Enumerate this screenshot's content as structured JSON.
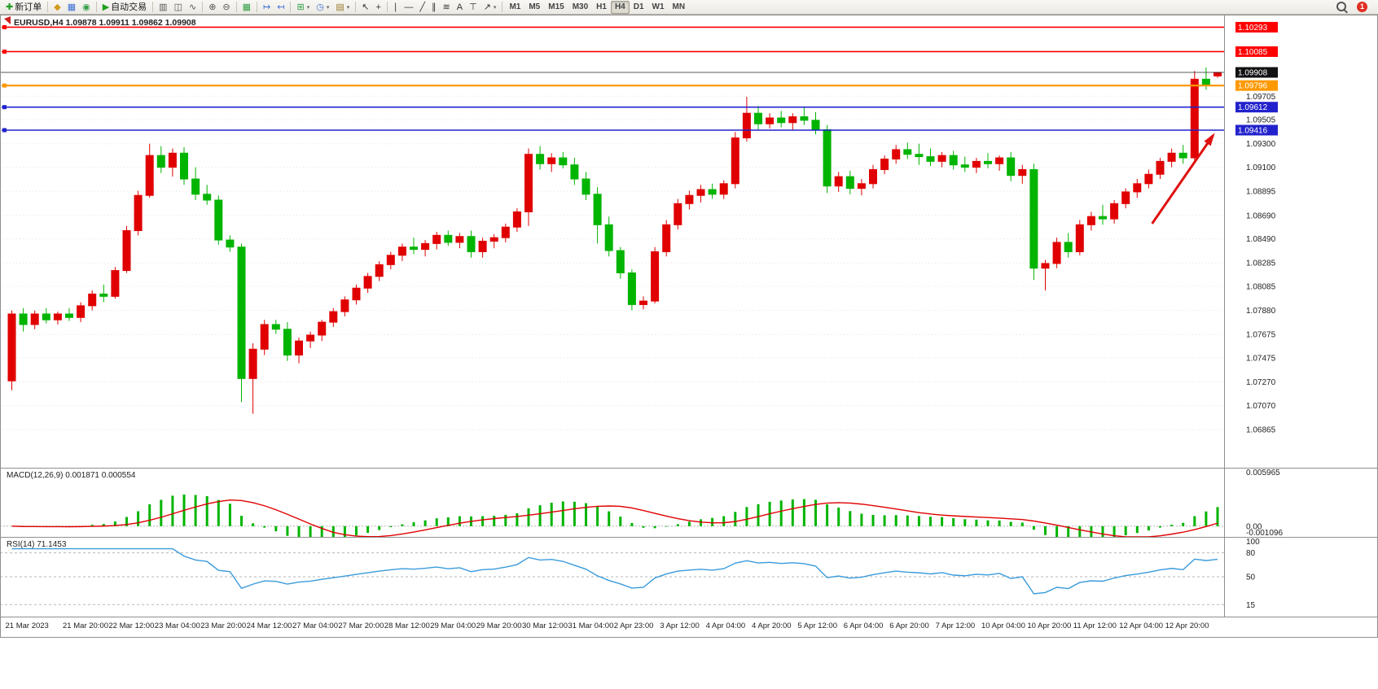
{
  "toolbar": {
    "timeframes": [
      "M1",
      "M5",
      "M15",
      "M30",
      "H1",
      "H4",
      "D1",
      "W1",
      "MN"
    ],
    "active_timeframe": "H4",
    "notification_count": "1",
    "items": [
      {
        "type": "button",
        "name": "new-order-button",
        "icon_name": "new-order-icon",
        "glyph": "✚",
        "color": "#1f9d1f",
        "label": "新订单"
      },
      {
        "type": "sep"
      },
      {
        "type": "button",
        "name": "market-watch-icon",
        "icon_name": "market-watch-icon",
        "glyph": "◆",
        "color": "#d29a1c"
      },
      {
        "type": "button",
        "name": "data-window-icon",
        "icon_name": "data-window-icon",
        "glyph": "▦",
        "color": "#3b6fd4"
      },
      {
        "type": "button",
        "name": "navigator-icon",
        "icon_name": "navigator-icon",
        "glyph": "◉",
        "color": "#2f9e44"
      },
      {
        "type": "sep"
      },
      {
        "type": "button",
        "name": "autotrade-button",
        "icon_name": "autotrade-play-icon",
        "glyph": "▶",
        "color": "#1f9d1f",
        "label": "自动交易"
      },
      {
        "type": "sep"
      },
      {
        "type": "button",
        "name": "bar-chart-icon",
        "icon_name": "bar-chart-icon",
        "glyph": "▥",
        "color": "#555555"
      },
      {
        "type": "button",
        "name": "candlestick-chart-icon",
        "icon_name": "candlestick-chart-icon",
        "glyph": "◫",
        "color": "#555555"
      },
      {
        "type": "button",
        "name": "line-chart-icon",
        "icon_name": "line-chart-icon",
        "glyph": "∿",
        "color": "#555555"
      },
      {
        "type": "sep"
      },
      {
        "type": "button",
        "name": "zoom-in-icon",
        "icon_name": "zoom-in-icon",
        "glyph": "⊕",
        "color": "#555555"
      },
      {
        "type": "button",
        "name": "zoom-out-icon",
        "icon_name": "zoom-out-icon",
        "glyph": "⊖",
        "color": "#555555"
      },
      {
        "type": "sep"
      },
      {
        "type": "button",
        "name": "tile-windows-icon",
        "icon_name": "tile-windows-icon",
        "glyph": "▦",
        "color": "#2f9e44"
      },
      {
        "type": "sep"
      },
      {
        "type": "button",
        "name": "auto-scroll-icon",
        "icon_name": "auto-scroll-icon",
        "glyph": "↦",
        "color": "#3b6fd4"
      },
      {
        "type": "button",
        "name": "chart-shift-icon",
        "icon_name": "chart-shift-icon",
        "glyph": "↤",
        "color": "#3b6fd4"
      },
      {
        "type": "sep"
      },
      {
        "type": "button",
        "name": "indicators-button",
        "icon_name": "indicators-icon",
        "glyph": "⊞",
        "color": "#2f9e44",
        "dropdown": true
      },
      {
        "type": "button",
        "name": "periods-button",
        "icon_name": "clock-icon",
        "glyph": "◷",
        "color": "#3b6fd4",
        "dropdown": true
      },
      {
        "type": "button",
        "name": "templates-button",
        "icon_name": "templates-icon",
        "glyph": "▤",
        "color": "#9a7b2f",
        "dropdown": true
      },
      {
        "type": "sep"
      },
      {
        "type": "button",
        "name": "cursor-icon",
        "icon_name": "cursor-icon",
        "glyph": "↖",
        "color": "#333333"
      },
      {
        "type": "button",
        "name": "crosshair-icon",
        "icon_name": "crosshair-icon",
        "glyph": "+",
        "color": "#333333"
      },
      {
        "type": "sep"
      },
      {
        "type": "button",
        "name": "vertical-line-icon",
        "icon_name": "vertical-line-icon",
        "glyph": "∣",
        "color": "#333333"
      },
      {
        "type": "button",
        "name": "horizontal-line-icon",
        "icon_name": "horizontal-line-icon",
        "glyph": "―",
        "color": "#333333"
      },
      {
        "type": "button",
        "name": "trendline-icon",
        "icon_name": "trendline-icon",
        "glyph": "╱",
        "color": "#333333"
      },
      {
        "type": "button",
        "name": "channel-icon",
        "icon_name": "channel-icon",
        "glyph": "∥",
        "color": "#333333"
      },
      {
        "type": "button",
        "name": "fibonacci-icon",
        "icon_name": "fibonacci-icon",
        "glyph": "≋",
        "color": "#333333"
      },
      {
        "type": "button",
        "name": "text-icon",
        "icon_name": "text-icon",
        "glyph": "A",
        "color": "#333333"
      },
      {
        "type": "button",
        "name": "text-label-icon",
        "icon_name": "text-label-icon",
        "glyph": "⊤",
        "color": "#333333"
      },
      {
        "type": "button",
        "name": "arrows-button",
        "icon_name": "arrow-objects-icon",
        "glyph": "↗",
        "color": "#333333",
        "dropdown": true
      },
      {
        "type": "sep"
      },
      {
        "type": "timeframes"
      },
      {
        "type": "spacer"
      },
      {
        "type": "search"
      },
      {
        "type": "badge",
        "name": "notification-badge"
      }
    ]
  },
  "chart_data": [
    {
      "type": "candlestick",
      "symbol": "EURUSD",
      "timeframe": "H4",
      "title_line": "EURUSD,H4  1.09878 1.09911 1.09862 1.09908",
      "open": 1.09878,
      "high": 1.09911,
      "low": 1.09862,
      "close": 1.09908,
      "up_color": "#e00000",
      "down_color": "#00b400",
      "ylim": [
        1.0654,
        1.104
      ],
      "grid": true,
      "price_ticks": [
        1.09705,
        1.09505,
        1.093,
        1.091,
        1.08895,
        1.0869,
        1.0849,
        1.08285,
        1.08085,
        1.0788,
        1.07675,
        1.07475,
        1.0727,
        1.0707,
        1.06865
      ],
      "hlines": [
        {
          "price": 1.10293,
          "color": "#ff0000",
          "label": "1.10293",
          "width": 1.6
        },
        {
          "price": 1.10085,
          "color": "#ff0000",
          "label": "1.10085",
          "width": 1.6
        },
        {
          "price": 1.09796,
          "color": "#ff9900",
          "label": "1.09796",
          "width": 2.2
        },
        {
          "price": 1.09612,
          "color": "#2222cc",
          "label": "1.09612",
          "width": 1.6
        },
        {
          "price": 1.09416,
          "color": "#2222cc",
          "label": "1.09416",
          "width": 1.6
        }
      ],
      "current_price": {
        "value": 1.09908,
        "label": "1.09908",
        "badge_color": "#111111"
      },
      "x_tick_labels": [
        "21 Mar 2023",
        "21 Mar 20:00",
        "22 Mar 12:00",
        "23 Mar 04:00",
        "23 Mar 20:00",
        "24 Mar 12:00",
        "27 Mar 04:00",
        "27 Mar 20:00",
        "28 Mar 12:00",
        "29 Mar 04:00",
        "29 Mar 20:00",
        "30 Mar 12:00",
        "31 Mar 04:00",
        "2 Apr 23:00",
        "3 Apr 12:00",
        "4 Apr 04:00",
        "4 Apr 20:00",
        "5 Apr 12:00",
        "6 Apr 04:00",
        "6 Apr 20:00",
        "7 Apr 12:00",
        "10 Apr 04:00",
        "10 Apr 20:00",
        "11 Apr 12:00",
        "12 Apr 04:00",
        "12 Apr 20:00"
      ],
      "x_tick_indices": [
        0,
        5,
        9,
        13,
        17,
        21,
        25,
        29,
        33,
        37,
        41,
        45,
        49,
        53,
        57,
        61,
        65,
        69,
        73,
        77,
        81,
        85,
        89,
        93,
        97,
        101
      ],
      "annotation": {
        "type": "arrow",
        "color": "#e01010",
        "from": {
          "candle": 99.3,
          "price": 1.0862
        },
        "to": {
          "candle": 104.6,
          "price": 1.0937
        }
      },
      "ohlc_header": [
        "open",
        "high",
        "low",
        "close"
      ],
      "candles": [
        [
          1.0728,
          1.0788,
          1.072,
          1.0785
        ],
        [
          1.0785,
          1.079,
          1.077,
          1.0776
        ],
        [
          1.0776,
          1.0788,
          1.0772,
          1.0785
        ],
        [
          1.0785,
          1.079,
          1.0777,
          1.078
        ],
        [
          1.078,
          1.0787,
          1.0776,
          1.0785
        ],
        [
          1.0785,
          1.079,
          1.0779,
          1.0782
        ],
        [
          1.0782,
          1.0795,
          1.0778,
          1.0792
        ],
        [
          1.0792,
          1.0805,
          1.0788,
          1.0802
        ],
        [
          1.0802,
          1.081,
          1.0795,
          1.08
        ],
        [
          1.08,
          1.0825,
          1.0798,
          1.0822
        ],
        [
          1.0822,
          1.086,
          1.082,
          1.0856
        ],
        [
          1.0856,
          1.089,
          1.0852,
          1.0886
        ],
        [
          1.0886,
          1.093,
          1.0884,
          1.092
        ],
        [
          1.092,
          1.0928,
          1.0905,
          1.091
        ],
        [
          1.091,
          1.0926,
          1.0902,
          1.0922
        ],
        [
          1.0922,
          1.0927,
          1.0895,
          1.09
        ],
        [
          1.09,
          1.091,
          1.0882,
          1.0887
        ],
        [
          1.0887,
          1.0895,
          1.0878,
          1.0882
        ],
        [
          1.0882,
          1.0886,
          1.0844,
          1.0848
        ],
        [
          1.0848,
          1.0852,
          1.0838,
          1.0842
        ],
        [
          1.0842,
          1.0845,
          1.071,
          1.073
        ],
        [
          1.073,
          1.076,
          1.07,
          1.0755
        ],
        [
          1.0755,
          1.078,
          1.075,
          1.0776
        ],
        [
          1.0776,
          1.078,
          1.0768,
          1.0772
        ],
        [
          1.0772,
          1.0778,
          1.0745,
          1.075
        ],
        [
          1.075,
          1.0765,
          1.0743,
          1.0762
        ],
        [
          1.0762,
          1.077,
          1.0756,
          1.0767
        ],
        [
          1.0767,
          1.078,
          1.0762,
          1.0778
        ],
        [
          1.0778,
          1.079,
          1.0774,
          1.0787
        ],
        [
          1.0787,
          1.08,
          1.0783,
          1.0797
        ],
        [
          1.0797,
          1.081,
          1.0793,
          1.0807
        ],
        [
          1.0807,
          1.082,
          1.0803,
          1.0817
        ],
        [
          1.0817,
          1.083,
          1.0813,
          1.0827
        ],
        [
          1.0827,
          1.0838,
          1.0823,
          1.0835
        ],
        [
          1.0835,
          1.0845,
          1.083,
          1.0842
        ],
        [
          1.0842,
          1.085,
          1.0836,
          1.084
        ],
        [
          1.084,
          1.0848,
          1.0834,
          1.0845
        ],
        [
          1.0845,
          1.0855,
          1.084,
          1.0852
        ],
        [
          1.0852,
          1.0856,
          1.0843,
          1.0846
        ],
        [
          1.0846,
          1.0854,
          1.0841,
          1.0851
        ],
        [
          1.0851,
          1.0856,
          1.0833,
          1.0838
        ],
        [
          1.0838,
          1.085,
          1.0833,
          1.0847
        ],
        [
          1.0847,
          1.0853,
          1.0841,
          1.085
        ],
        [
          1.085,
          1.0862,
          1.0846,
          1.0859
        ],
        [
          1.0859,
          1.0875,
          1.0855,
          1.0872
        ],
        [
          1.0872,
          1.0926,
          1.086,
          1.0921
        ],
        [
          1.0921,
          1.0928,
          1.0908,
          1.0913
        ],
        [
          1.0913,
          1.0922,
          1.0906,
          1.0918
        ],
        [
          1.0918,
          1.0923,
          1.0909,
          1.0912
        ],
        [
          1.0912,
          1.0918,
          1.0895,
          1.09
        ],
        [
          1.09,
          1.0906,
          1.0882,
          1.0887
        ],
        [
          1.0887,
          1.0893,
          1.0845,
          1.0861
        ],
        [
          1.0861,
          1.0868,
          1.0834,
          1.0839
        ],
        [
          1.0839,
          1.0842,
          1.0815,
          1.082
        ],
        [
          1.082,
          1.0823,
          1.0788,
          1.0793
        ],
        [
          1.0793,
          1.08,
          1.0789,
          1.0796
        ],
        [
          1.0796,
          1.0842,
          1.0794,
          1.0838
        ],
        [
          1.0838,
          1.0865,
          1.0834,
          1.0861
        ],
        [
          1.0861,
          1.0883,
          1.0857,
          1.0879
        ],
        [
          1.0879,
          1.089,
          1.0874,
          1.0886
        ],
        [
          1.0886,
          1.0895,
          1.088,
          1.0891
        ],
        [
          1.0891,
          1.0896,
          1.0883,
          1.0887
        ],
        [
          1.0887,
          1.0899,
          1.0883,
          1.0896
        ],
        [
          1.0896,
          1.094,
          1.0892,
          1.0935
        ],
        [
          1.0935,
          1.097,
          1.0932,
          1.0956
        ],
        [
          1.0956,
          1.0962,
          1.0942,
          1.0947
        ],
        [
          1.0947,
          1.0956,
          1.0943,
          1.0952
        ],
        [
          1.0952,
          1.0958,
          1.0944,
          1.0948
        ],
        [
          1.0948,
          1.0956,
          1.0942,
          1.0953
        ],
        [
          1.0953,
          1.0961,
          1.0946,
          1.095
        ],
        [
          1.095,
          1.0957,
          1.0938,
          1.0942
        ],
        [
          1.0942,
          1.0946,
          1.0888,
          1.0894
        ],
        [
          1.0894,
          1.0906,
          1.0889,
          1.0902
        ],
        [
          1.0902,
          1.0907,
          1.0887,
          1.0892
        ],
        [
          1.0892,
          1.09,
          1.0886,
          1.0896
        ],
        [
          1.0896,
          1.0912,
          1.0892,
          1.0908
        ],
        [
          1.0908,
          1.092,
          1.0904,
          1.0917
        ],
        [
          1.0917,
          1.0929,
          1.0913,
          1.0925
        ],
        [
          1.0925,
          1.0931,
          1.0917,
          1.0921
        ],
        [
          1.0921,
          1.093,
          1.0912,
          1.0919
        ],
        [
          1.0919,
          1.0926,
          1.0911,
          1.0915
        ],
        [
          1.0915,
          1.0923,
          1.091,
          1.092
        ],
        [
          1.092,
          1.0924,
          1.0908,
          1.0912
        ],
        [
          1.0912,
          1.0919,
          1.0906,
          1.091
        ],
        [
          1.091,
          1.0918,
          1.0905,
          1.0915
        ],
        [
          1.0915,
          1.0922,
          1.0909,
          1.0913
        ],
        [
          1.0913,
          1.092,
          1.0907,
          1.0918
        ],
        [
          1.0918,
          1.0923,
          1.0898,
          1.0903
        ],
        [
          1.0903,
          1.0912,
          1.0896,
          1.0908
        ],
        [
          1.0908,
          1.0913,
          1.0814,
          1.0824
        ],
        [
          1.0824,
          1.0831,
          1.0805,
          1.0828
        ],
        [
          1.0828,
          1.085,
          1.0824,
          1.0846
        ],
        [
          1.0846,
          1.0854,
          1.0833,
          1.0838
        ],
        [
          1.0838,
          1.0865,
          1.0835,
          1.0861
        ],
        [
          1.0861,
          1.0872,
          1.0856,
          1.0868
        ],
        [
          1.0868,
          1.0878,
          1.0861,
          1.0866
        ],
        [
          1.0866,
          1.0882,
          1.0862,
          1.0879
        ],
        [
          1.0879,
          1.0892,
          1.0875,
          1.0889
        ],
        [
          1.0889,
          1.09,
          1.0884,
          1.0896
        ],
        [
          1.0896,
          1.0908,
          1.0892,
          1.0904
        ],
        [
          1.0904,
          1.0918,
          1.09,
          1.0915
        ],
        [
          1.0915,
          1.0926,
          1.091,
          1.0922
        ],
        [
          1.0922,
          1.0929,
          1.0913,
          1.0918
        ],
        [
          1.0918,
          1.0992,
          1.0915,
          1.0985
        ],
        [
          1.0985,
          1.0995,
          1.0976,
          1.098
        ],
        [
          1.09878,
          1.09911,
          1.09862,
          1.09908
        ]
      ]
    },
    {
      "type": "macd",
      "label": "MACD(12,26,9) 0.001871 0.000554",
      "params": [
        12,
        26,
        9
      ],
      "current_macd": 0.001871,
      "current_signal": 0.000554,
      "histogram_color": "#00b400",
      "signal_color": "#e00000",
      "ylim": [
        -0.001096,
        0.005965
      ],
      "yticks": [
        {
          "v": 0.005965,
          "label": "0.005965"
        },
        {
          "v": 0,
          "label": "0.00"
        },
        {
          "v": -0.001096,
          "label": "-0.001096"
        }
      ]
    },
    {
      "type": "rsi",
      "label": "RSI(14) 71.1453",
      "period": 14,
      "current": 71.1453,
      "line_color": "#3a9bdc",
      "ylim": [
        0,
        100
      ],
      "levels": [
        80,
        50,
        15
      ],
      "yticks": [
        {
          "v": 100,
          "label": "100"
        },
        {
          "v": 80,
          "label": "80"
        },
        {
          "v": 50,
          "label": "50"
        },
        {
          "v": 15,
          "label": "15"
        }
      ]
    }
  ]
}
